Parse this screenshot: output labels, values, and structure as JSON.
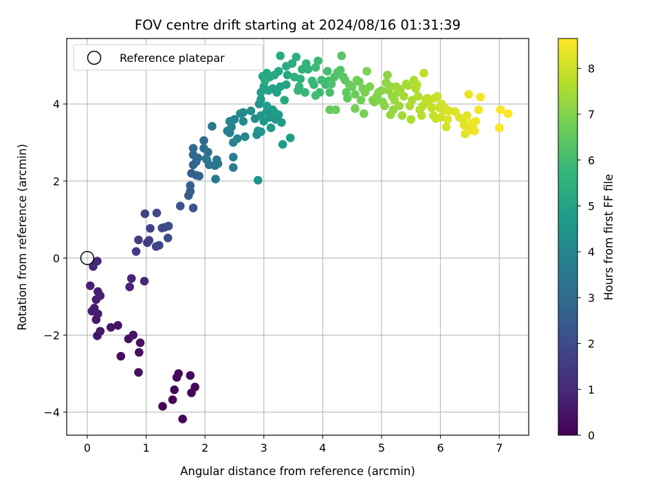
{
  "chart_data": {
    "type": "scatter",
    "title": "FOV centre drift starting at 2024/08/16 01:31:39",
    "xlabel": "Angular distance from reference (arcmin)",
    "ylabel": "Rotation from reference (arcmin)",
    "xlim": [
      -0.35,
      7.5
    ],
    "ylim": [
      -4.6,
      5.7
    ],
    "xticks": [
      0,
      1,
      2,
      3,
      4,
      5,
      6,
      7
    ],
    "yticks": [
      -4,
      -2,
      0,
      2,
      4
    ],
    "grid": true,
    "legend": {
      "location": "upper-left",
      "entries": [
        "Reference platepar"
      ]
    },
    "reference_point": {
      "x": 0,
      "y": 0,
      "marker": "open-circle"
    },
    "colorbar": {
      "label": "Hours from first FF file",
      "min": 0,
      "max": 8.65,
      "ticks": [
        0,
        1,
        2,
        3,
        4,
        5,
        6,
        7,
        8
      ],
      "colormap": "viridis"
    },
    "colormap_stops": [
      "#440154",
      "#482878",
      "#3e4989",
      "#31688e",
      "#26828e",
      "#1f9e89",
      "#35b779",
      "#6ece58",
      "#b5de2b",
      "#fde725"
    ],
    "points": [
      [
        1.62,
        -4.18,
        0.05
      ],
      [
        1.28,
        -3.85,
        0.08
      ],
      [
        1.45,
        -3.68,
        0.1
      ],
      [
        1.48,
        -3.42,
        0.12
      ],
      [
        1.77,
        -3.5,
        0.14
      ],
      [
        1.83,
        -3.35,
        0.16
      ],
      [
        1.75,
        -3.05,
        0.18
      ],
      [
        1.55,
        -3.0,
        0.2
      ],
      [
        1.52,
        -3.1,
        0.22
      ],
      [
        0.57,
        -2.55,
        0.3
      ],
      [
        0.87,
        -2.97,
        0.32
      ],
      [
        0.88,
        -2.45,
        0.35
      ],
      [
        0.7,
        -2.1,
        0.38
      ],
      [
        0.9,
        -2.2,
        0.4
      ],
      [
        0.78,
        -2.0,
        0.42
      ],
      [
        0.4,
        -1.8,
        0.45
      ],
      [
        0.52,
        -1.75,
        0.48
      ],
      [
        0.17,
        -2.02,
        0.55
      ],
      [
        0.22,
        -1.9,
        0.58
      ],
      [
        0.15,
        -1.6,
        0.6
      ],
      [
        0.18,
        -1.45,
        0.63
      ],
      [
        0.12,
        -1.3,
        0.66
      ],
      [
        0.08,
        -1.38,
        0.7
      ],
      [
        0.15,
        -1.08,
        0.72
      ],
      [
        0.22,
        -0.98,
        0.75
      ],
      [
        0.18,
        -0.87,
        0.78
      ],
      [
        0.05,
        -0.72,
        0.8
      ],
      [
        0.72,
        -0.75,
        0.85
      ],
      [
        0.75,
        -0.53,
        0.88
      ],
      [
        0.97,
        -0.6,
        0.9
      ],
      [
        0.1,
        -0.22,
        0.95
      ],
      [
        0.17,
        -0.08,
        1.0
      ],
      [
        0.83,
        0.17,
        1.5
      ],
      [
        0.87,
        0.47,
        1.55
      ],
      [
        1.02,
        0.4,
        1.6
      ],
      [
        1.05,
        0.46,
        1.65
      ],
      [
        1.07,
        0.77,
        1.7
      ],
      [
        0.98,
        1.15,
        1.75
      ],
      [
        1.17,
        0.3,
        1.8
      ],
      [
        1.22,
        0.33,
        1.85
      ],
      [
        1.18,
        1.17,
        1.9
      ],
      [
        1.27,
        0.78,
        1.95
      ],
      [
        1.32,
        0.8,
        2.0
      ],
      [
        1.38,
        0.83,
        2.05
      ],
      [
        1.37,
        0.52,
        2.1
      ],
      [
        1.58,
        1.35,
        2.3
      ],
      [
        1.8,
        1.3,
        2.4
      ],
      [
        1.72,
        1.62,
        2.5
      ],
      [
        1.75,
        1.73,
        2.55
      ],
      [
        1.75,
        1.88,
        2.6
      ],
      [
        1.77,
        2.2,
        2.65
      ],
      [
        1.85,
        2.15,
        2.7
      ],
      [
        1.9,
        2.13,
        2.75
      ],
      [
        1.8,
        2.42,
        2.8
      ],
      [
        1.85,
        2.5,
        2.85
      ],
      [
        1.88,
        2.6,
        2.9
      ],
      [
        1.8,
        2.68,
        2.95
      ],
      [
        1.8,
        2.85,
        3.0
      ],
      [
        1.98,
        3.05,
        3.05
      ],
      [
        1.98,
        2.85,
        3.1
      ],
      [
        2.05,
        2.75,
        3.15
      ],
      [
        2.02,
        2.58,
        3.2
      ],
      [
        2.07,
        2.42,
        3.25
      ],
      [
        2.17,
        2.4,
        3.3
      ],
      [
        2.2,
        2.55,
        3.35
      ],
      [
        2.22,
        2.45,
        3.4
      ],
      [
        2.12,
        3.42,
        3.45
      ],
      [
        2.18,
        2.05,
        3.5
      ],
      [
        2.03,
        2.55,
        3.55
      ],
      [
        2.48,
        2.35,
        3.6
      ],
      [
        2.48,
        2.62,
        3.65
      ],
      [
        2.38,
        3.3,
        3.7
      ],
      [
        2.42,
        3.25,
        3.75
      ],
      [
        2.45,
        3.4,
        3.8
      ],
      [
        2.5,
        3.6,
        3.85
      ],
      [
        2.42,
        3.55,
        3.9
      ],
      [
        2.48,
        3.0,
        3.95
      ],
      [
        2.55,
        3.1,
        4.0
      ],
      [
        2.68,
        3.15,
        4.05
      ],
      [
        2.65,
        3.55,
        4.1
      ],
      [
        2.6,
        3.75,
        4.15
      ],
      [
        2.65,
        3.78,
        4.2
      ],
      [
        2.78,
        3.82,
        4.25
      ],
      [
        2.85,
        3.62,
        4.3
      ],
      [
        2.88,
        3.2,
        4.35
      ],
      [
        2.9,
        3.3,
        4.4
      ],
      [
        2.95,
        3.28,
        4.45
      ],
      [
        2.92,
        4.0,
        4.5
      ],
      [
        2.95,
        3.7,
        4.52
      ],
      [
        3.0,
        3.55,
        4.55
      ],
      [
        3.05,
        3.8,
        4.57
      ],
      [
        3.1,
        3.65,
        4.6
      ],
      [
        3.15,
        3.85,
        4.62
      ],
      [
        3.2,
        3.6,
        4.65
      ],
      [
        3.25,
        3.72,
        4.67
      ],
      [
        3.12,
        3.38,
        4.7
      ],
      [
        3.3,
        3.52,
        4.72
      ],
      [
        3.32,
        2.95,
        4.75
      ],
      [
        3.45,
        3.12,
        4.77
      ],
      [
        2.95,
        4.12,
        4.8
      ],
      [
        2.9,
        2.02,
        4.45
      ],
      [
        3.18,
        3.78,
        4.85
      ],
      [
        3.05,
        3.95,
        4.87
      ],
      [
        2.95,
        4.3,
        4.9
      ],
      [
        3.0,
        4.45,
        4.92
      ],
      [
        3.08,
        4.35,
        4.95
      ],
      [
        3.15,
        4.4,
        4.97
      ],
      [
        3.22,
        4.3,
        5.0
      ],
      [
        3.28,
        4.45,
        5.02
      ],
      [
        3.38,
        4.5,
        5.05
      ],
      [
        2.98,
        4.72,
        5.07
      ],
      [
        3.05,
        4.8,
        5.1
      ],
      [
        3.1,
        4.7,
        5.12
      ],
      [
        3.18,
        4.75,
        5.15
      ],
      [
        3.25,
        4.85,
        5.17
      ],
      [
        3.4,
        4.75,
        5.2
      ],
      [
        3.35,
        4.1,
        5.22
      ],
      [
        3.02,
        4.6,
        5.25
      ],
      [
        3.28,
        5.25,
        5.3
      ],
      [
        3.38,
        4.98,
        5.35
      ],
      [
        3.48,
        5.05,
        5.4
      ],
      [
        3.55,
        5.22,
        5.45
      ],
      [
        3.52,
        4.7,
        5.5
      ],
      [
        3.62,
        4.65,
        5.55
      ],
      [
        3.65,
        4.9,
        5.6
      ],
      [
        3.72,
        5.05,
        5.65
      ],
      [
        3.75,
        4.9,
        5.7
      ],
      [
        3.6,
        4.45,
        5.72
      ],
      [
        3.58,
        4.35,
        5.75
      ],
      [
        3.7,
        4.3,
        5.78
      ],
      [
        3.82,
        4.6,
        5.8
      ],
      [
        3.85,
        4.5,
        5.82
      ],
      [
        3.92,
        5.12,
        5.85
      ],
      [
        3.88,
        4.95,
        5.88
      ],
      [
        3.95,
        4.3,
        5.9
      ],
      [
        3.98,
        4.62,
        5.92
      ],
      [
        4.05,
        4.5,
        5.95
      ],
      [
        3.88,
        4.22,
        5.97
      ],
      [
        4.1,
        4.6,
        6.0
      ],
      [
        4.08,
        4.85,
        6.05
      ],
      [
        4.12,
        4.3,
        6.1
      ],
      [
        4.15,
        4.52,
        6.15
      ],
      [
        4.2,
        4.7,
        6.2
      ],
      [
        4.25,
        4.82,
        6.25
      ],
      [
        4.3,
        4.88,
        6.3
      ],
      [
        4.32,
        5.25,
        6.35
      ],
      [
        4.35,
        4.7,
        6.4
      ],
      [
        4.38,
        4.62,
        6.45
      ],
      [
        4.4,
        4.3,
        6.5
      ],
      [
        4.42,
        4.15,
        6.55
      ],
      [
        4.12,
        3.85,
        6.58
      ],
      [
        4.22,
        3.85,
        6.62
      ],
      [
        4.45,
        4.5,
        6.65
      ],
      [
        4.5,
        4.45,
        6.68
      ],
      [
        4.55,
        4.25,
        6.7
      ],
      [
        4.58,
        4.62,
        6.72
      ],
      [
        4.62,
        4.58,
        6.75
      ],
      [
        4.65,
        4.1,
        6.78
      ],
      [
        4.55,
        3.88,
        6.8
      ],
      [
        4.7,
        3.75,
        6.82
      ],
      [
        4.68,
        4.4,
        6.85
      ],
      [
        4.72,
        4.3,
        6.87
      ],
      [
        4.75,
        4.85,
        6.9
      ],
      [
        4.8,
        4.45,
        6.92
      ],
      [
        4.85,
        4.1,
        6.95
      ],
      [
        4.88,
        4.05,
        6.97
      ],
      [
        4.92,
        4.2,
        7.0
      ],
      [
        4.95,
        4.3,
        7.02
      ],
      [
        5.0,
        4.35,
        7.05
      ],
      [
        5.02,
        4.05,
        7.07
      ],
      [
        5.05,
        3.95,
        7.1
      ],
      [
        5.08,
        4.55,
        7.12
      ],
      [
        5.1,
        4.75,
        7.15
      ],
      [
        5.12,
        4.35,
        7.17
      ],
      [
        5.15,
        4.45,
        7.2
      ],
      [
        5.18,
        4.2,
        7.22
      ],
      [
        5.2,
        3.85,
        7.25
      ],
      [
        5.15,
        3.72,
        7.27
      ],
      [
        5.22,
        4.1,
        7.3
      ],
      [
        5.25,
        4.45,
        7.32
      ],
      [
        5.28,
        4.3,
        7.35
      ],
      [
        5.3,
        3.95,
        7.37
      ],
      [
        5.32,
        4.38,
        7.4
      ],
      [
        5.35,
        3.7,
        7.42
      ],
      [
        5.38,
        4.2,
        7.45
      ],
      [
        5.42,
        4.52,
        7.47
      ],
      [
        5.45,
        4.48,
        7.5
      ],
      [
        5.48,
        3.95,
        7.52
      ],
      [
        5.5,
        3.6,
        7.55
      ],
      [
        5.52,
        4.1,
        7.57
      ],
      [
        5.55,
        4.62,
        7.6
      ],
      [
        5.58,
        4.4,
        7.62
      ],
      [
        5.6,
        4.5,
        7.65
      ],
      [
        5.62,
        4.2,
        7.67
      ],
      [
        5.65,
        3.85,
        7.7
      ],
      [
        5.68,
        3.7,
        7.72
      ],
      [
        5.7,
        3.95,
        7.75
      ],
      [
        5.72,
        4.8,
        7.77
      ],
      [
        5.75,
        4.12,
        7.8
      ],
      [
        5.78,
        4.15,
        7.82
      ],
      [
        5.8,
        4.05,
        7.85
      ],
      [
        5.85,
        3.9,
        7.87
      ],
      [
        5.88,
        3.7,
        7.9
      ],
      [
        5.9,
        4.15,
        7.92
      ],
      [
        5.92,
        3.62,
        7.95
      ],
      [
        5.95,
        4.2,
        7.97
      ],
      [
        5.98,
        3.9,
        8.0
      ],
      [
        6.0,
        3.65,
        8.02
      ],
      [
        6.02,
        4.0,
        8.05
      ],
      [
        6.05,
        3.82,
        8.07
      ],
      [
        6.08,
        3.88,
        8.1
      ],
      [
        6.1,
        3.4,
        8.12
      ],
      [
        6.12,
        3.6,
        8.15
      ],
      [
        6.15,
        3.82,
        8.17
      ],
      [
        6.25,
        3.8,
        8.2
      ],
      [
        6.32,
        3.65,
        8.22
      ],
      [
        6.38,
        3.6,
        8.25
      ],
      [
        6.4,
        3.45,
        8.27
      ],
      [
        6.42,
        3.22,
        8.3
      ],
      [
        6.45,
        3.7,
        8.32
      ],
      [
        6.48,
        4.25,
        8.35
      ],
      [
        6.5,
        3.32,
        8.37
      ],
      [
        6.52,
        3.5,
        8.4
      ],
      [
        6.55,
        3.38,
        8.42
      ],
      [
        6.58,
        3.3,
        8.45
      ],
      [
        6.6,
        3.55,
        8.47
      ],
      [
        6.65,
        3.85,
        8.5
      ],
      [
        6.68,
        4.18,
        8.52
      ],
      [
        7.0,
        3.38,
        8.55
      ],
      [
        7.02,
        3.85,
        8.58
      ],
      [
        7.15,
        3.75,
        8.62
      ]
    ]
  }
}
